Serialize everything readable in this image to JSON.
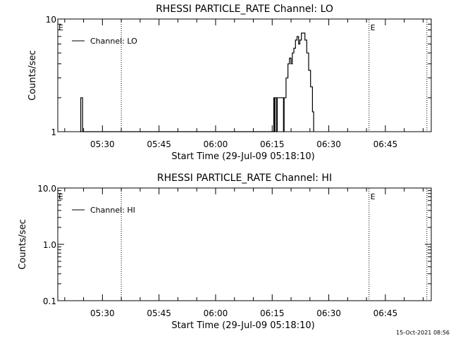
{
  "footer_timestamp": "15-Oct-2021 08:56",
  "chart_data": [
    {
      "type": "line",
      "title": "RHESSI PARTICLE_RATE Channel: LO",
      "xlabel": "Start Time (29-Jul-09 05:18:10)",
      "ylabel": "Counts/sec",
      "yscale": "log",
      "ylim": [
        1,
        10
      ],
      "xlim": [
        "05:18:10",
        "06:57:10"
      ],
      "y_tick_labels": [
        "1",
        "10"
      ],
      "x_tick_labels": [
        "05:30",
        "05:45",
        "06:00",
        "06:15",
        "06:30",
        "06:45"
      ],
      "legend": {
        "position": "top-left",
        "entries": [
          "Channel: LO"
        ]
      },
      "event_markers": [
        {
          "time": "05:35:00",
          "label": ""
        },
        {
          "time": "06:40:40",
          "label": "E"
        },
        {
          "time": "06:56:00",
          "label": ""
        }
      ],
      "edge_labels": [
        "E"
      ],
      "series": [
        {
          "name": "Channel: LO",
          "points": [
            [
              "05:24:00",
              1
            ],
            [
              "05:24:15",
              2
            ],
            [
              "05:24:30",
              2
            ],
            [
              "05:24:45",
              1
            ],
            [
              "06:15:15",
              1
            ],
            [
              "06:15:25",
              2
            ],
            [
              "06:15:35",
              1
            ],
            [
              "06:15:45",
              2
            ],
            [
              "06:16:10",
              1
            ],
            [
              "06:16:20",
              2
            ],
            [
              "06:17:40",
              2
            ],
            [
              "06:18:00",
              1
            ],
            [
              "06:18:10",
              2
            ],
            [
              "06:18:40",
              3
            ],
            [
              "06:19:10",
              4
            ],
            [
              "06:19:35",
              4.5
            ],
            [
              "06:20:00",
              4
            ],
            [
              "06:20:20",
              5
            ],
            [
              "06:20:45",
              5.5
            ],
            [
              "06:21:10",
              6.5
            ],
            [
              "06:21:35",
              7
            ],
            [
              "06:22:00",
              6
            ],
            [
              "06:22:20",
              6.5
            ],
            [
              "06:22:45",
              7.5
            ],
            [
              "06:23:20",
              7.5
            ],
            [
              "06:23:40",
              6.5
            ],
            [
              "06:24:10",
              5
            ],
            [
              "06:24:40",
              3.5
            ],
            [
              "06:25:10",
              2.5
            ],
            [
              "06:25:40",
              1.5
            ],
            [
              "06:26:00",
              1
            ]
          ]
        }
      ]
    },
    {
      "type": "line",
      "title": "RHESSI PARTICLE_RATE Channel: HI",
      "xlabel": "Start Time (29-Jul-09 05:18:10)",
      "ylabel": "Counts/sec",
      "yscale": "log",
      "ylim": [
        0.1,
        10
      ],
      "xlim": [
        "05:18:10",
        "06:57:10"
      ],
      "y_tick_labels": [
        "0.1",
        "1.0",
        "10.0"
      ],
      "x_tick_labels": [
        "05:30",
        "05:45",
        "06:00",
        "06:15",
        "06:30",
        "06:45"
      ],
      "legend": {
        "position": "top-left",
        "entries": [
          "Channel: HI"
        ]
      },
      "event_markers": [
        {
          "time": "05:35:00",
          "label": ""
        },
        {
          "time": "06:40:40",
          "label": "E"
        },
        {
          "time": "06:56:00",
          "label": ""
        }
      ],
      "edge_labels": [
        "E"
      ],
      "series": [
        {
          "name": "Channel: HI",
          "points": []
        }
      ]
    }
  ]
}
